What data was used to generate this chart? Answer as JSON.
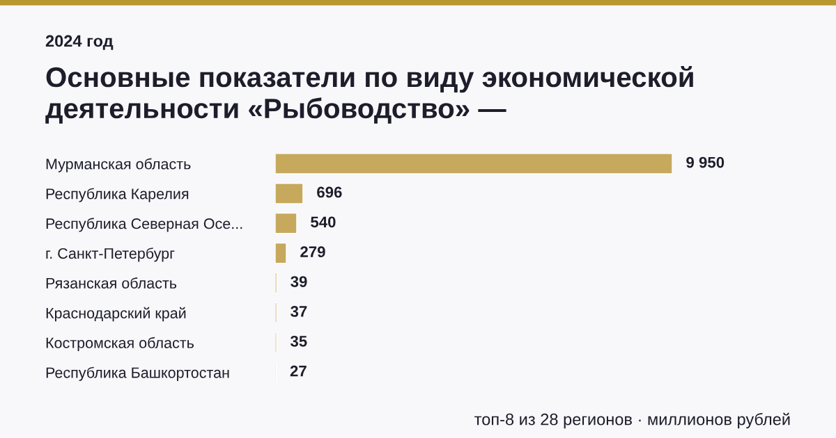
{
  "chart_data": {
    "type": "bar",
    "orientation": "horizontal",
    "subtitle": "2024 год",
    "title": "Основные показатели по виду экономической\nдеятельности «Рыбоводство» —",
    "categories": [
      "Мурманская область",
      "Республика Карелия",
      "Республика Северная Осе...",
      "г. Санкт-Петербург",
      "Рязанская область",
      "Краснодарский край",
      "Костромская область",
      "Республика Башкортостан"
    ],
    "values": [
      9950,
      696,
      540,
      279,
      39,
      37,
      35,
      27
    ],
    "value_labels": [
      "9 950",
      "696",
      "540",
      "279",
      "39",
      "37",
      "35",
      "27"
    ],
    "color": "#c6a95c",
    "tick_labels": "y",
    "grid": false,
    "legend": false,
    "annotations": [
      "топ-8 из 28 регионов · миллионов рублей"
    ]
  }
}
